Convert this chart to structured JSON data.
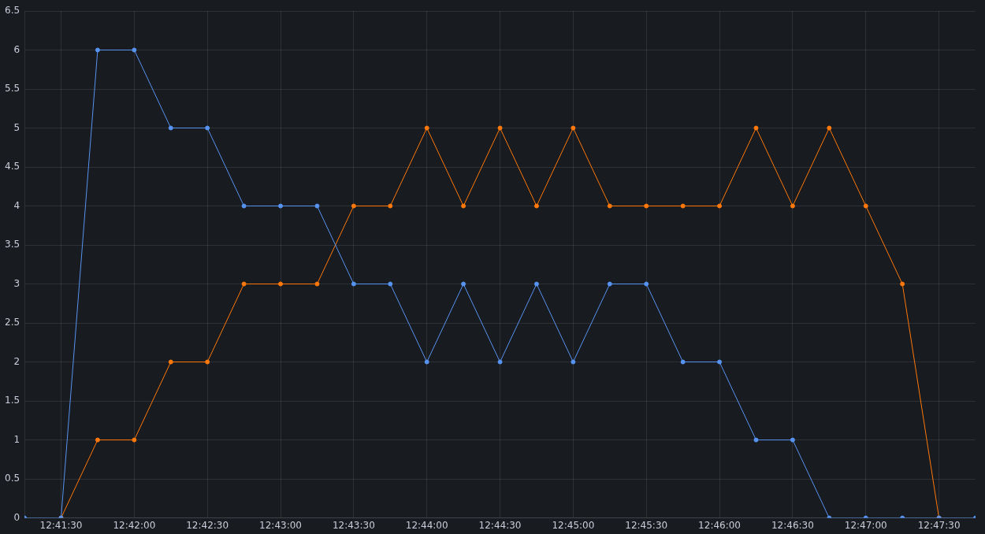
{
  "chart_data": {
    "type": "line",
    "x": [
      12.6875,
      12.691667,
      12.695833,
      12.7,
      12.704167,
      12.708333,
      12.7125,
      12.716667,
      12.720833,
      12.725,
      12.729167,
      12.733333,
      12.7375,
      12.741667,
      12.745833,
      12.75,
      12.754167,
      12.758333,
      12.7625,
      12.766667,
      12.770833,
      12.775,
      12.779167,
      12.783333,
      12.7875,
      12.791667,
      12.795833
    ],
    "series": [
      {
        "color": "#5794f2",
        "values": [
          0,
          0,
          6,
          6,
          5,
          5,
          4,
          4,
          4,
          3,
          3,
          2,
          3,
          2,
          3,
          2,
          3,
          3,
          2,
          2,
          1,
          1,
          0,
          0,
          0,
          0,
          0
        ]
      },
      {
        "color": "#ff780a",
        "values": [
          null,
          0,
          1,
          1,
          2,
          2,
          3,
          3,
          3,
          4,
          4,
          5,
          4,
          5,
          4,
          5,
          4,
          4,
          4,
          4,
          5,
          4,
          5,
          4,
          3,
          0,
          null
        ]
      }
    ],
    "xlim": [
      12.6875,
      12.795833
    ],
    "xticks": [
      {
        "value": 12.691667,
        "label": "12:41:30"
      },
      {
        "value": 12.7,
        "label": "12:42:00"
      },
      {
        "value": 12.708333,
        "label": "12:42:30"
      },
      {
        "value": 12.716667,
        "label": "12:43:00"
      },
      {
        "value": 12.725,
        "label": "12:43:30"
      },
      {
        "value": 12.733333,
        "label": "12:44:00"
      },
      {
        "value": 12.741667,
        "label": "12:44:30"
      },
      {
        "value": 12.75,
        "label": "12:45:00"
      },
      {
        "value": 12.758333,
        "label": "12:45:30"
      },
      {
        "value": 12.766667,
        "label": "12:46:00"
      },
      {
        "value": 12.775,
        "label": "12:46:30"
      },
      {
        "value": 12.783333,
        "label": "12:47:00"
      },
      {
        "value": 12.791667,
        "label": "12:47:30"
      }
    ],
    "ylim": [
      0,
      6.5
    ],
    "yticks": [
      0,
      0.5,
      1,
      1.5,
      2,
      2.5,
      3,
      3.5,
      4,
      4.5,
      5,
      5.5,
      6,
      6.5
    ],
    "grid": true,
    "legend": false,
    "marker": "circle",
    "line_style": "solid"
  }
}
